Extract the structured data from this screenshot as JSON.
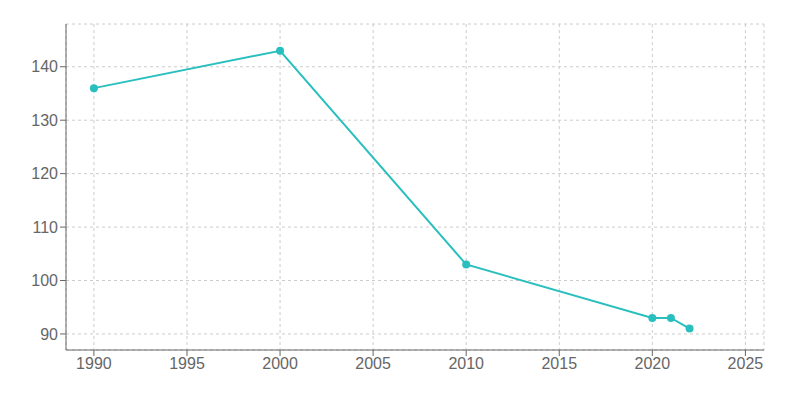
{
  "chart_data": {
    "type": "line",
    "x": [
      1990,
      2000,
      2010,
      2020,
      2021,
      2022
    ],
    "values": [
      136,
      143,
      103,
      93,
      93,
      91
    ],
    "color": "#2abfbf",
    "marker": "circle",
    "xlim": [
      1988.5,
      2026
    ],
    "ylim": [
      87,
      148
    ],
    "xticks": [
      1990,
      1995,
      2000,
      2005,
      2010,
      2015,
      2020,
      2025
    ],
    "yticks": [
      90,
      100,
      110,
      120,
      130,
      140
    ],
    "grid": true
  }
}
